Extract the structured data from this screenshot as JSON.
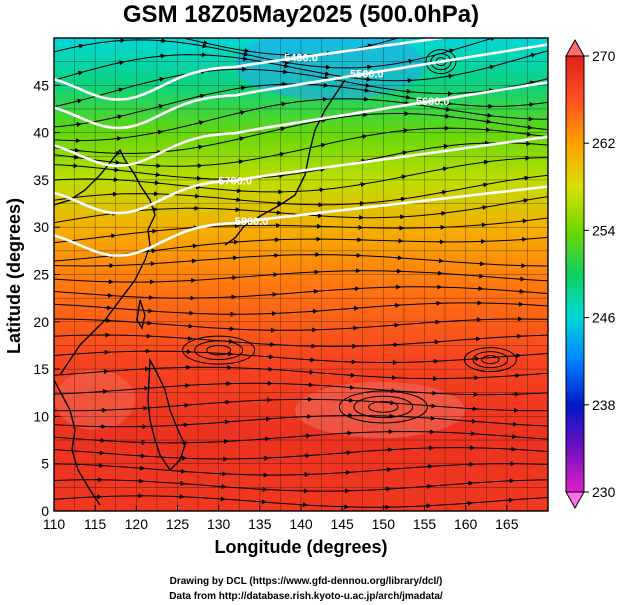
{
  "chart_data": {
    "type": "heatmap",
    "title": "GSM 18Z05May2025 (500.0hPa)",
    "xlabel": "Longitude (degrees)",
    "ylabel": "Latitude  (degrees)",
    "xlim": [
      110,
      170
    ],
    "ylim": [
      0,
      50
    ],
    "x_ticks": [
      "110",
      "115",
      "120",
      "125",
      "130",
      "135",
      "140",
      "145",
      "150",
      "155",
      "160",
      "165"
    ],
    "y_ticks": [
      "0",
      "5",
      "10",
      "15",
      "20",
      "25",
      "30",
      "35",
      "40",
      "45"
    ],
    "colorbar": {
      "min": 230,
      "max": 270,
      "ticks": [
        "230",
        "238",
        "246",
        "254",
        "262",
        "270"
      ],
      "stops": [
        "#e020c8",
        "#7010c0",
        "#0018c8",
        "#0080ff",
        "#00d8d8",
        "#10d060",
        "#70d800",
        "#d8e000",
        "#ffa000",
        "#ff5020",
        "#e02020"
      ]
    },
    "temperature_profile": [
      {
        "lat": 0,
        "t": 268
      },
      {
        "lat": 8,
        "t": 268.5
      },
      {
        "lat": 16,
        "t": 267
      },
      {
        "lat": 24,
        "t": 264
      },
      {
        "lat": 30,
        "t": 261
      },
      {
        "lat": 35,
        "t": 257
      },
      {
        "lat": 40,
        "t": 253.5
      },
      {
        "lat": 45,
        "t": 249
      },
      {
        "lat": 50,
        "t": 246
      }
    ],
    "height_contours": [
      {
        "label": "5400.0",
        "value": 5400
      },
      {
        "label": "5500.0",
        "value": 5500
      },
      {
        "label": "5600.0",
        "value": 5600
      },
      {
        "label": "5700.0",
        "value": 5700
      },
      {
        "label": "5800.0",
        "value": 5800
      }
    ]
  },
  "credits": {
    "line1": "Drawing by DCL (https://www.gfd-dennou.org/library/dcl/)",
    "line2": "Data from http://database.rish.kyoto-u.ac.jp/arch/jmadata/"
  }
}
